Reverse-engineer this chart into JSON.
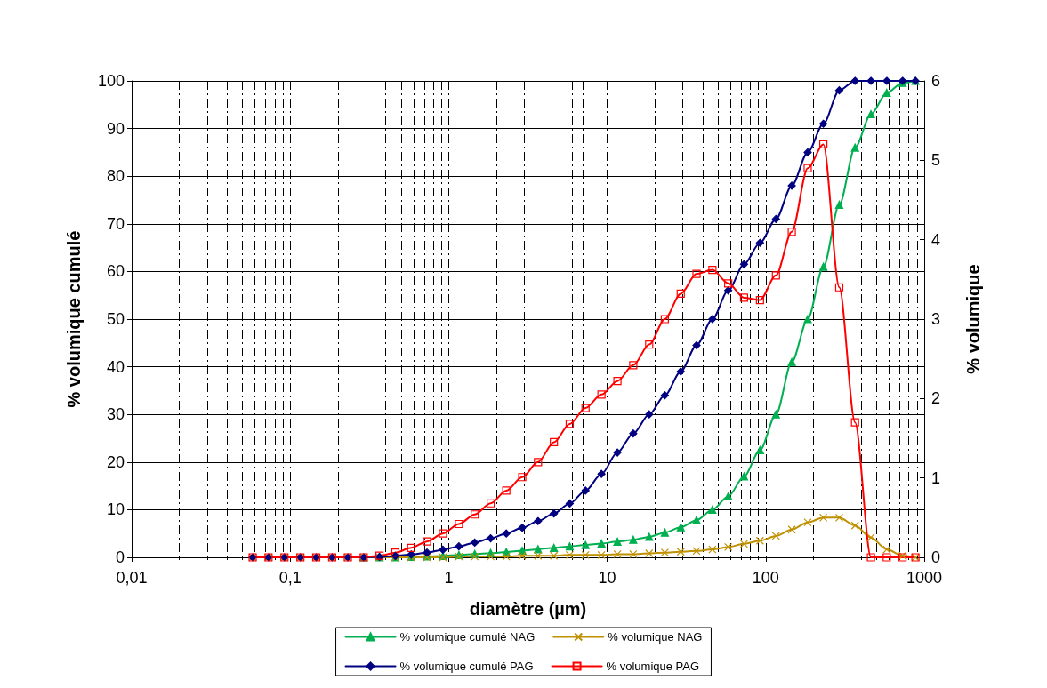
{
  "chart_data": {
    "type": "line",
    "xlabel": "diamètre (µm)",
    "ylabel": "% volumique cumulé",
    "y2label": "% volumique",
    "log": "x",
    "grid": true,
    "legend": "bottom",
    "line_style": "solid",
    "xlim": [
      0.01,
      1000
    ],
    "xticks": [
      {
        "value": 0.01,
        "label": "0,01"
      },
      {
        "value": 0.1,
        "label": "0,1"
      },
      1,
      10,
      100,
      1000
    ],
    "ylim": [
      0,
      100
    ],
    "yticks": [
      0,
      10,
      20,
      30,
      40,
      50,
      60,
      70,
      80,
      90,
      100
    ],
    "y2lim": [
      0,
      6
    ],
    "y2ticks": [
      0,
      1,
      2,
      3,
      4,
      5,
      6
    ],
    "x": [
      0.058,
      0.073,
      0.092,
      0.116,
      0.146,
      0.184,
      0.231,
      0.291,
      0.366,
      0.461,
      0.58,
      0.73,
      0.92,
      1.16,
      1.46,
      1.84,
      2.31,
      2.91,
      3.66,
      4.61,
      5.8,
      7.3,
      9.2,
      11.6,
      14.6,
      18.4,
      23.1,
      29.1,
      36.6,
      46.1,
      58,
      73,
      92,
      116,
      146,
      184,
      231,
      291,
      366,
      461,
      580,
      730,
      880
    ],
    "series": [
      {
        "name": "% volumique cumulé NAG",
        "color": "#00b050",
        "marker": "triangle",
        "values": [
          null,
          null,
          null,
          null,
          null,
          null,
          null,
          0,
          0,
          0,
          0.1,
          0.2,
          0.3,
          0.5,
          0.7,
          0.9,
          1.1,
          1.4,
          1.7,
          2.0,
          2.3,
          2.6,
          2.9,
          3.3,
          3.7,
          4.3,
          5.2,
          6.3,
          7.8,
          10,
          12.8,
          17,
          22.5,
          30,
          41,
          50,
          61,
          74,
          86,
          93,
          97.5,
          99.6,
          100
        ]
      },
      {
        "name": "% volumique NAG",
        "color": "#bf9000",
        "marker": "cross",
        "axis": "y2",
        "values": [
          0,
          0,
          0,
          0,
          0,
          0,
          0,
          0,
          0,
          0,
          0,
          0,
          0,
          0.01,
          0.01,
          0.01,
          0.01,
          0.02,
          0.02,
          0.02,
          0.03,
          0.03,
          0.03,
          0.04,
          0.04,
          0.05,
          0.06,
          0.07,
          0.08,
          0.1,
          0.13,
          0.17,
          0.21,
          0.27,
          0.35,
          0.44,
          0.5,
          0.5,
          0.4,
          0.25,
          0.1,
          0.02,
          0
        ]
      },
      {
        "name": "% volumique cumulé PAG",
        "color": "#000080",
        "marker": "diamond",
        "values": [
          0,
          0,
          0,
          0,
          0,
          0,
          0,
          0,
          0.1,
          0.3,
          0.6,
          1.0,
          1.6,
          2.3,
          3.1,
          4.0,
          5.0,
          6.2,
          7.6,
          9.2,
          11.3,
          14,
          17.5,
          22,
          26,
          30,
          34,
          39,
          44.5,
          50,
          56,
          61.5,
          66,
          71,
          78,
          85,
          91,
          98,
          100,
          100,
          100,
          100,
          100
        ]
      },
      {
        "name": "% volumique PAG",
        "color": "#ff0000",
        "marker": "square",
        "axis": "y2",
        "values": [
          0,
          0,
          0,
          0,
          0,
          0,
          0,
          0,
          0.02,
          0.06,
          0.12,
          0.2,
          0.3,
          0.42,
          0.54,
          0.68,
          0.84,
          1.01,
          1.2,
          1.45,
          1.68,
          1.88,
          2.05,
          2.22,
          2.42,
          2.68,
          3.0,
          3.32,
          3.57,
          3.62,
          3.45,
          3.27,
          3.24,
          3.55,
          4.1,
          4.9,
          5.2,
          3.4,
          1.7,
          0,
          0,
          0,
          0
        ]
      }
    ]
  }
}
